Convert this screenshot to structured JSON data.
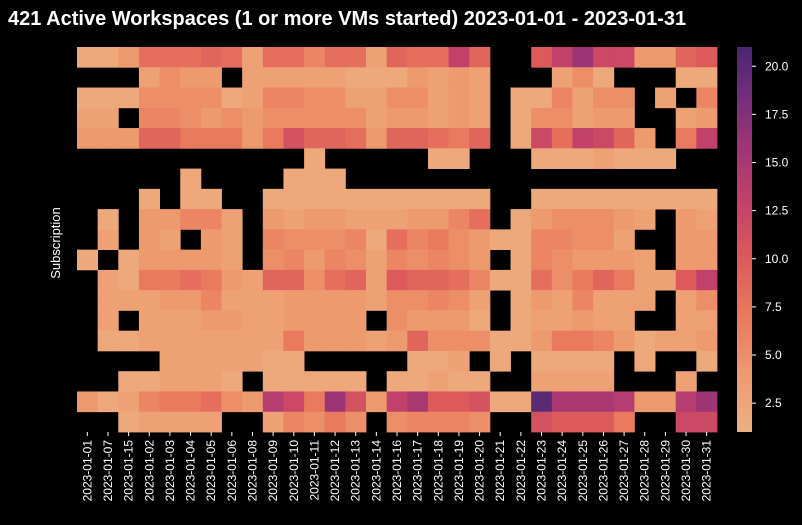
{
  "chart_data": {
    "type": "heatmap",
    "title": "421 Active Workspaces (1 or more VMs started) 2023-01-01 - 2023-01-31",
    "xlabel": "",
    "ylabel": "Subscription",
    "x_categories": [
      "2023-01-01",
      "2023-01-07",
      "2023-01-15",
      "2023-01-02",
      "2023-01-03",
      "2023-01-04",
      "2023-01-05",
      "2023-01-06",
      "2023-01-08",
      "2023-01-09",
      "2023-01-10",
      "2023-01-11",
      "2023-01-12",
      "2023-01-13",
      "2023-01-14",
      "2023-01-16",
      "2023-01-17",
      "2023-01-18",
      "2023-01-19",
      "2023-01-20",
      "2023-01-21",
      "2023-01-22",
      "2023-01-23",
      "2023-01-24",
      "2023-01-25",
      "2023-01-26",
      "2023-01-27",
      "2023-01-28",
      "2023-01-29",
      "2023-01-30",
      "2023-01-31"
    ],
    "n_rows": 19,
    "colorbar": {
      "min": 1,
      "max": 21,
      "ticks": [
        2.5,
        5.0,
        7.5,
        10.0,
        12.5,
        15.0,
        17.5,
        20.0
      ],
      "tick_labels": [
        "2.5",
        "5.0",
        "7.5",
        "10.0",
        "12.5",
        "15.0",
        "17.5",
        "20.0"
      ],
      "colormap": "flare"
    },
    "values": [
      [
        2,
        2,
        4,
        8,
        8,
        8,
        9,
        8,
        3,
        8,
        8,
        6,
        8,
        8,
        3,
        9,
        8,
        8,
        13,
        9,
        null,
        null,
        10,
        13,
        16,
        12,
        12,
        4,
        4,
        9,
        10
      ],
      [
        null,
        null,
        null,
        3,
        5,
        4,
        4,
        null,
        3,
        3,
        3,
        3,
        3,
        2,
        2,
        2,
        4,
        3,
        4,
        3,
        null,
        null,
        null,
        3,
        5,
        2,
        null,
        null,
        null,
        2,
        2
      ],
      [
        2,
        2,
        2,
        5,
        5,
        5,
        5,
        2,
        3,
        6,
        6,
        5,
        5,
        3,
        3,
        5,
        5,
        3,
        4,
        3,
        null,
        2,
        2,
        6,
        3,
        5,
        5,
        null,
        3,
        null,
        6
      ],
      [
        3,
        3,
        null,
        6,
        6,
        5,
        4,
        5,
        4,
        5,
        5,
        5,
        5,
        5,
        3,
        4,
        4,
        3,
        4,
        3,
        null,
        2,
        5,
        5,
        3,
        4,
        4,
        null,
        null,
        3,
        4
      ],
      [
        4,
        4,
        4,
        9,
        9,
        7,
        7,
        7,
        4,
        7,
        11,
        9,
        9,
        8,
        4,
        9,
        9,
        8,
        7,
        9,
        null,
        2,
        12,
        8,
        13,
        12,
        9,
        4,
        null,
        7,
        13
      ],
      [
        null,
        null,
        null,
        null,
        null,
        null,
        null,
        null,
        null,
        null,
        null,
        2,
        null,
        null,
        null,
        null,
        null,
        2,
        2,
        null,
        null,
        null,
        2,
        2,
        2,
        3,
        2,
        2,
        2,
        null,
        null
      ],
      [
        null,
        null,
        null,
        null,
        null,
        2,
        null,
        null,
        null,
        null,
        2,
        2,
        2,
        null,
        null,
        null,
        null,
        null,
        null,
        null,
        null,
        null,
        null,
        null,
        null,
        null,
        null,
        null,
        null,
        null,
        null
      ],
      [
        null,
        null,
        null,
        2,
        null,
        2,
        2,
        null,
        null,
        2,
        2,
        2,
        2,
        2,
        2,
        2,
        2,
        2,
        2,
        2,
        null,
        null,
        2,
        2,
        2,
        2,
        2,
        2,
        2,
        2,
        2
      ],
      [
        null,
        2,
        null,
        4,
        4,
        6,
        6,
        3,
        null,
        4,
        3,
        4,
        4,
        3,
        3,
        3,
        4,
        4,
        6,
        8,
        null,
        2,
        4,
        5,
        5,
        5,
        4,
        3,
        null,
        4,
        3
      ],
      [
        null,
        3,
        null,
        4,
        3,
        null,
        4,
        3,
        null,
        6,
        5,
        5,
        5,
        6,
        2,
        8,
        6,
        7,
        5,
        4,
        2,
        2,
        6,
        6,
        5,
        5,
        3,
        null,
        null,
        4,
        4
      ],
      [
        2,
        null,
        2,
        4,
        4,
        4,
        4,
        3,
        null,
        5,
        6,
        4,
        6,
        5,
        3,
        6,
        5,
        6,
        5,
        4,
        null,
        2,
        6,
        5,
        4,
        4,
        4,
        3,
        null,
        4,
        4
      ],
      [
        null,
        3,
        2,
        7,
        7,
        8,
        7,
        4,
        3,
        9,
        9,
        5,
        8,
        9,
        3,
        10,
        9,
        9,
        8,
        6,
        2,
        2,
        8,
        5,
        7,
        9,
        7,
        3,
        3,
        10,
        13
      ],
      [
        null,
        3,
        3,
        3,
        4,
        4,
        6,
        3,
        3,
        3,
        4,
        4,
        4,
        4,
        3,
        5,
        5,
        6,
        5,
        3,
        null,
        2,
        4,
        3,
        6,
        3,
        3,
        3,
        null,
        3,
        5
      ],
      [
        null,
        3,
        null,
        3,
        3,
        3,
        4,
        4,
        3,
        3,
        4,
        4,
        4,
        4,
        null,
        5,
        4,
        4,
        4,
        2,
        null,
        2,
        3,
        3,
        4,
        3,
        3,
        null,
        null,
        3,
        3
      ],
      [
        null,
        2,
        2,
        3,
        3,
        3,
        3,
        3,
        3,
        3,
        7,
        4,
        4,
        4,
        3,
        4,
        9,
        5,
        5,
        5,
        2,
        2,
        4,
        7,
        7,
        6,
        4,
        2,
        3,
        3,
        4
      ],
      [
        null,
        null,
        null,
        null,
        3,
        3,
        3,
        3,
        3,
        2,
        2,
        null,
        null,
        null,
        null,
        null,
        2,
        2,
        3,
        null,
        2,
        null,
        2,
        2,
        2,
        2,
        null,
        2,
        null,
        null,
        2
      ],
      [
        null,
        null,
        2,
        2,
        3,
        3,
        3,
        2,
        null,
        2,
        2,
        2,
        2,
        2,
        null,
        2,
        2,
        3,
        2,
        2,
        null,
        null,
        3,
        3,
        3,
        3,
        null,
        null,
        null,
        3,
        null
      ],
      [
        4,
        2,
        3,
        6,
        7,
        7,
        8,
        5,
        4,
        14,
        12,
        7,
        16,
        11,
        4,
        13,
        15,
        10,
        10,
        11,
        2,
        2,
        20,
        15,
        15,
        15,
        14,
        4,
        4,
        14,
        16
      ],
      [
        null,
        null,
        2,
        3,
        3,
        3,
        3,
        null,
        null,
        3,
        6,
        5,
        7,
        5,
        null,
        5,
        6,
        6,
        6,
        5,
        null,
        null,
        11,
        10,
        10,
        10,
        7,
        null,
        null,
        12,
        12
      ]
    ]
  }
}
